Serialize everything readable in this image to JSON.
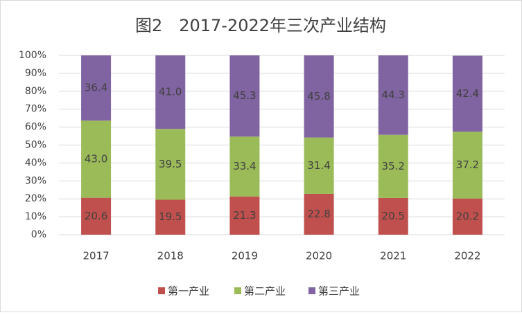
{
  "chart_data": {
    "type": "stacked_bar",
    "title": "图2　2017-2022年三次产业结构",
    "categories": [
      "2017",
      "2018",
      "2019",
      "2020",
      "2021",
      "2022"
    ],
    "series": [
      {
        "name": "第一产业",
        "color": "#c0504d",
        "values": [
          20.6,
          19.5,
          21.3,
          22.8,
          20.5,
          20.2
        ],
        "value_labels": [
          "20.6",
          "19.5",
          "21.3",
          "22.8",
          "20.5",
          "20.2"
        ]
      },
      {
        "name": "第二产业",
        "color": "#9bbb59",
        "values": [
          43.0,
          39.5,
          33.4,
          31.4,
          35.2,
          37.2
        ],
        "value_labels": [
          "43.0",
          "39.5",
          "33.4",
          "31.4",
          "35.2",
          "37.2"
        ]
      },
      {
        "name": "第三产业",
        "color": "#8064a2",
        "values": [
          36.4,
          41.0,
          45.3,
          45.8,
          44.3,
          42.4
        ],
        "value_labels": [
          "36.4",
          "41.0",
          "45.3",
          "45.8",
          "44.3",
          "42.4"
        ]
      }
    ],
    "ylim": [
      0,
      100
    ],
    "yticks": [
      {
        "value": 0,
        "label": "0%"
      },
      {
        "value": 10,
        "label": "10%"
      },
      {
        "value": 20,
        "label": "20%"
      },
      {
        "value": 30,
        "label": "30%"
      },
      {
        "value": 40,
        "label": "40%"
      },
      {
        "value": 50,
        "label": "50%"
      },
      {
        "value": 60,
        "label": "60%"
      },
      {
        "value": 70,
        "label": "70%"
      },
      {
        "value": 80,
        "label": "80%"
      },
      {
        "value": 90,
        "label": "90%"
      },
      {
        "value": 100,
        "label": "100%"
      }
    ],
    "grid": true,
    "legend": "bottom"
  }
}
